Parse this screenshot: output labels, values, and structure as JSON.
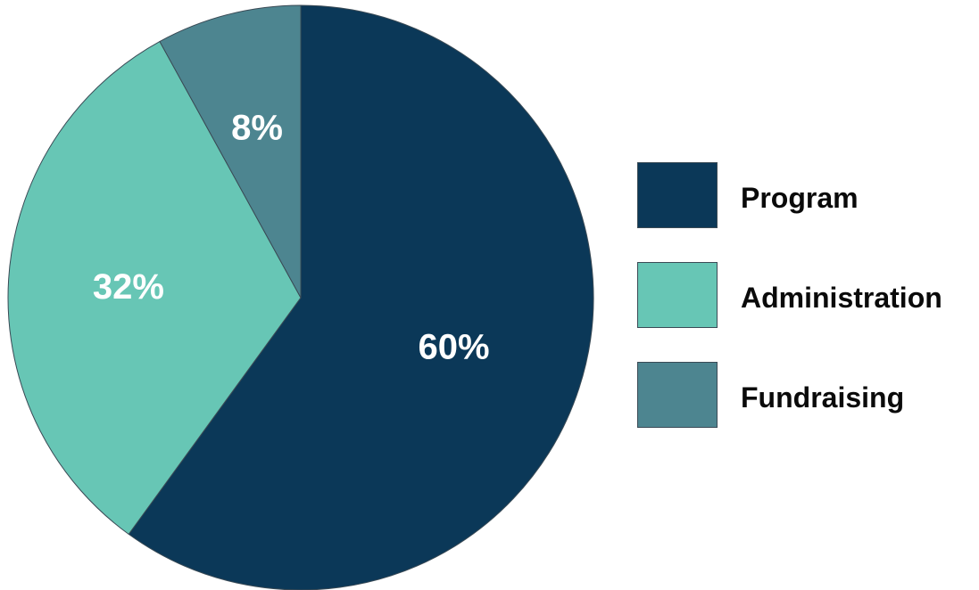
{
  "chart_data": {
    "type": "pie",
    "start_angle_deg": 0,
    "direction": "clockwise",
    "slices": [
      {
        "label": "Program",
        "value": 60,
        "display": "60%",
        "color": "#0b3858"
      },
      {
        "label": "Administration",
        "value": 32,
        "display": "32%",
        "color": "#67c6b5"
      },
      {
        "label": "Fundraising",
        "value": 8,
        "display": "8%",
        "color": "#4d8590"
      }
    ],
    "legend_position": "right"
  }
}
